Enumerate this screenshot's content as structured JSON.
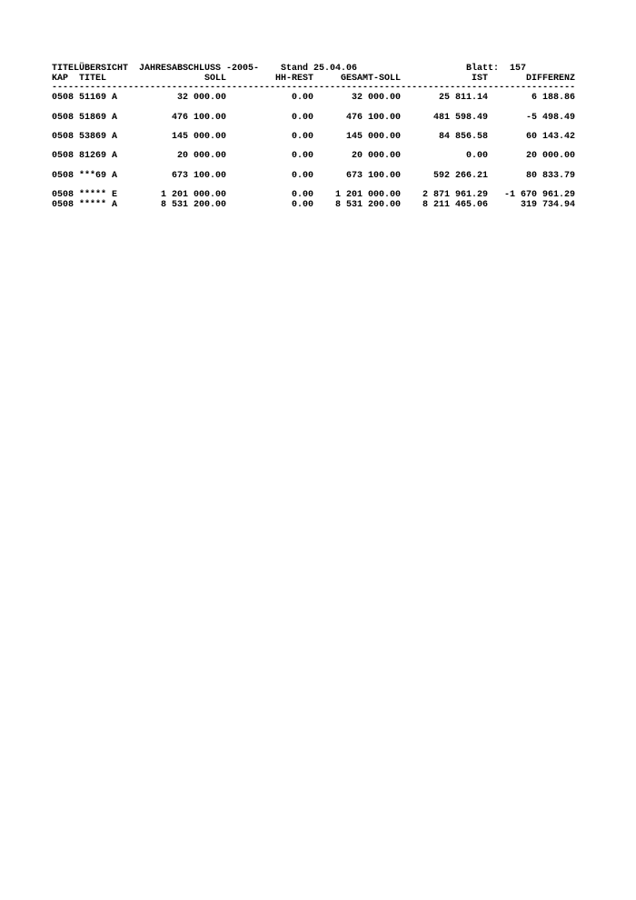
{
  "page": {
    "background": "#ffffff",
    "text_color": "#000000"
  },
  "report": {
    "title": "TITELÜBERSICHT  JAHRESABSCHLUSS -2005-",
    "stand": "Stand 25.04.06",
    "blatt_label": "Blatt:",
    "blatt_value": "157",
    "column_headers": {
      "left": "KAP  TITEL",
      "soll": "SOLL",
      "hh_rest": "HH-REST",
      "gesamt_soll": "GESAMT-SOLL",
      "ist": "IST",
      "differenz": "DIFFERENZ"
    },
    "separator": {
      "char": "-",
      "length": 96
    },
    "rows": [
      {
        "id": "0508 51169 A",
        "soll": "32 000.00",
        "hh_rest": "0.00",
        "gesamt_soll": "32 000.00",
        "ist": "25 811.14",
        "differenz": "6 188.86"
      },
      {
        "id": "0508 51869 A",
        "soll": "476 100.00",
        "hh_rest": "0.00",
        "gesamt_soll": "476 100.00",
        "ist": "481 598.49",
        "differenz": "-5 498.49"
      },
      {
        "id": "0508 53869 A",
        "soll": "145 000.00",
        "hh_rest": "0.00",
        "gesamt_soll": "145 000.00",
        "ist": "84 856.58",
        "differenz": "60 143.42"
      },
      {
        "id": "0508 81269 A",
        "soll": "20 000.00",
        "hh_rest": "0.00",
        "gesamt_soll": "20 000.00",
        "ist": "0.00",
        "differenz": "20 000.00"
      },
      {
        "id": "0508 ***69 A",
        "soll": "673 100.00",
        "hh_rest": "0.00",
        "gesamt_soll": "673 100.00",
        "ist": "592 266.21",
        "differenz": "80 833.79"
      }
    ],
    "totals": [
      {
        "id": "0508 ***** E",
        "soll": "1 201 000.00",
        "hh_rest": "0.00",
        "gesamt_soll": "1 201 000.00",
        "ist": "2 871 961.29",
        "differenz": "-1 670 961.29"
      },
      {
        "id": "0508 ***** A",
        "soll": "8 531 200.00",
        "hh_rest": "0.00",
        "gesamt_soll": "8 531 200.00",
        "ist": "8 211 465.06",
        "differenz": "319 734.94"
      }
    ]
  }
}
